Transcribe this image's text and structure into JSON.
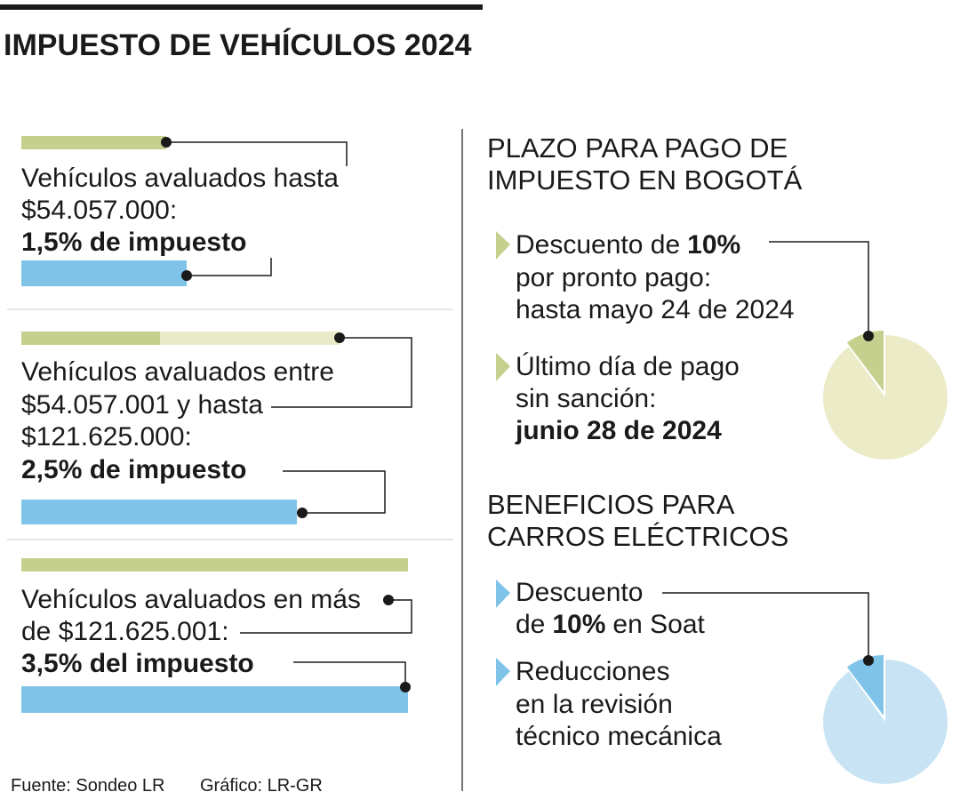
{
  "header": {
    "title": "IMPUESTO DE VEHÍCULOS 2024"
  },
  "tiers": [
    {
      "lines": [
        "Vehículos avaluados hasta",
        "$54.057.000:"
      ],
      "rate": "1,5% de impuesto"
    },
    {
      "lines": [
        "Vehículos avaluados entre",
        "$54.057.001 y hasta",
        "$121.625.000:"
      ],
      "rate": "2,5% de impuesto"
    },
    {
      "lines": [
        "Vehículos avaluados en más",
        "de $121.625.001:"
      ],
      "rate": "3,5% del impuesto"
    }
  ],
  "deadlines": {
    "title_lines": [
      "PLAZO PARA PAGO DE",
      "IMPUESTO EN BOGOTÁ"
    ],
    "early": {
      "before": "Descuento de",
      "bold": "10%",
      "lines": [
        "por pronto pago:",
        "hasta mayo 24 de 2024"
      ]
    },
    "last": {
      "lines": [
        "Último día de pago",
        "sin sanción:"
      ],
      "bold": "junio 28 de 2024"
    }
  },
  "electric": {
    "title_lines": [
      "BENEFICIOS PARA",
      "CARROS ELÉCTRICOS"
    ],
    "discount": {
      "line": "Descuento",
      "before": "de",
      "bold": "10%",
      "after": "en Soat"
    },
    "reductions": {
      "lines": [
        "Reducciones",
        "en la revisión",
        "técnico mecánica"
      ]
    }
  },
  "footer": {
    "source": "Fuente: Sondeo LR",
    "graphic": "Gráfico: LR-GR"
  }
}
